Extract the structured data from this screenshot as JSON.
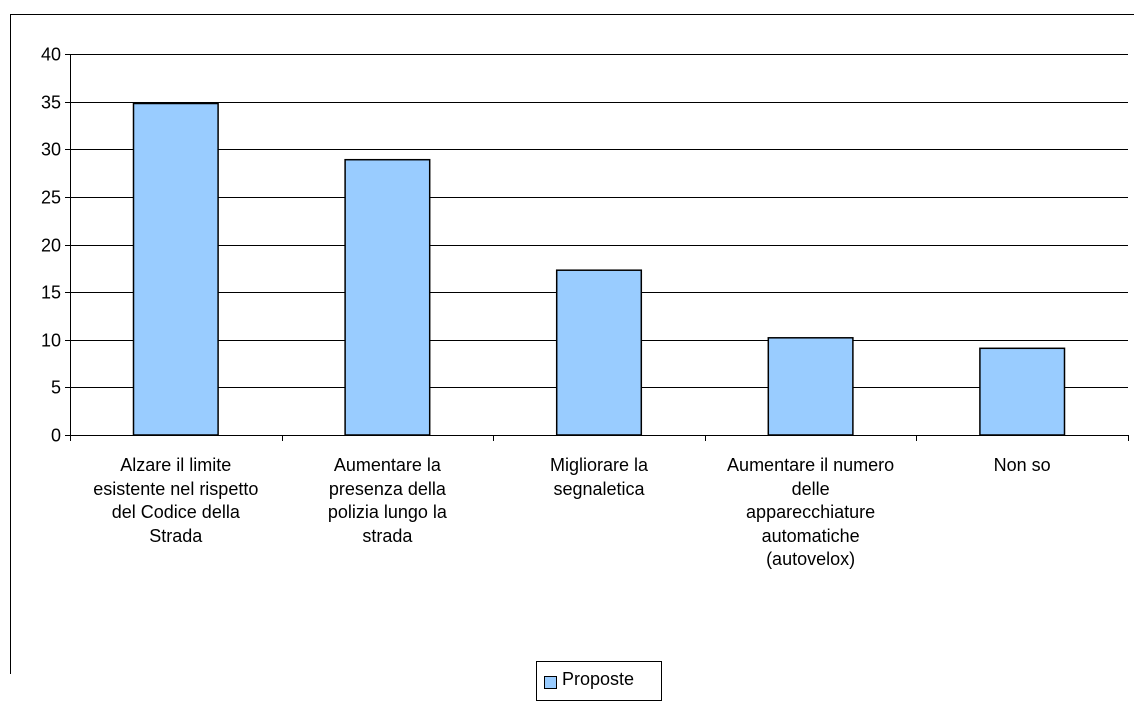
{
  "chart_data": {
    "type": "bar",
    "categories": [
      "Alzare il limite esistente nel rispetto del Codice della Strada",
      "Aumentare la presenza della polizia lungo la strada",
      "Migliorare la segnaletica",
      "Aumentare il numero delle apparecchiature automatiche (autovelox)",
      "Non so"
    ],
    "category_lines": [
      [
        "Alzare il limite",
        "esistente nel rispetto",
        "del Codice della",
        "Strada"
      ],
      [
        "Aumentare la",
        "presenza della",
        "polizia lungo la",
        "strada"
      ],
      [
        "Migliorare la",
        "segnaletica"
      ],
      [
        "Aumentare il numero",
        "delle",
        "apparecchiature",
        "automatiche",
        "(autovelox)"
      ],
      [
        "Non so"
      ]
    ],
    "series": [
      {
        "name": "Proposte",
        "values": [
          34.8,
          28.9,
          17.3,
          10.2,
          9.1
        ],
        "color": "#99ccff"
      }
    ],
    "ylim": [
      0,
      40
    ],
    "yticks": [
      0,
      5,
      10,
      15,
      20,
      25,
      30,
      35,
      40
    ],
    "grid": true,
    "legend": "bottom-center"
  }
}
